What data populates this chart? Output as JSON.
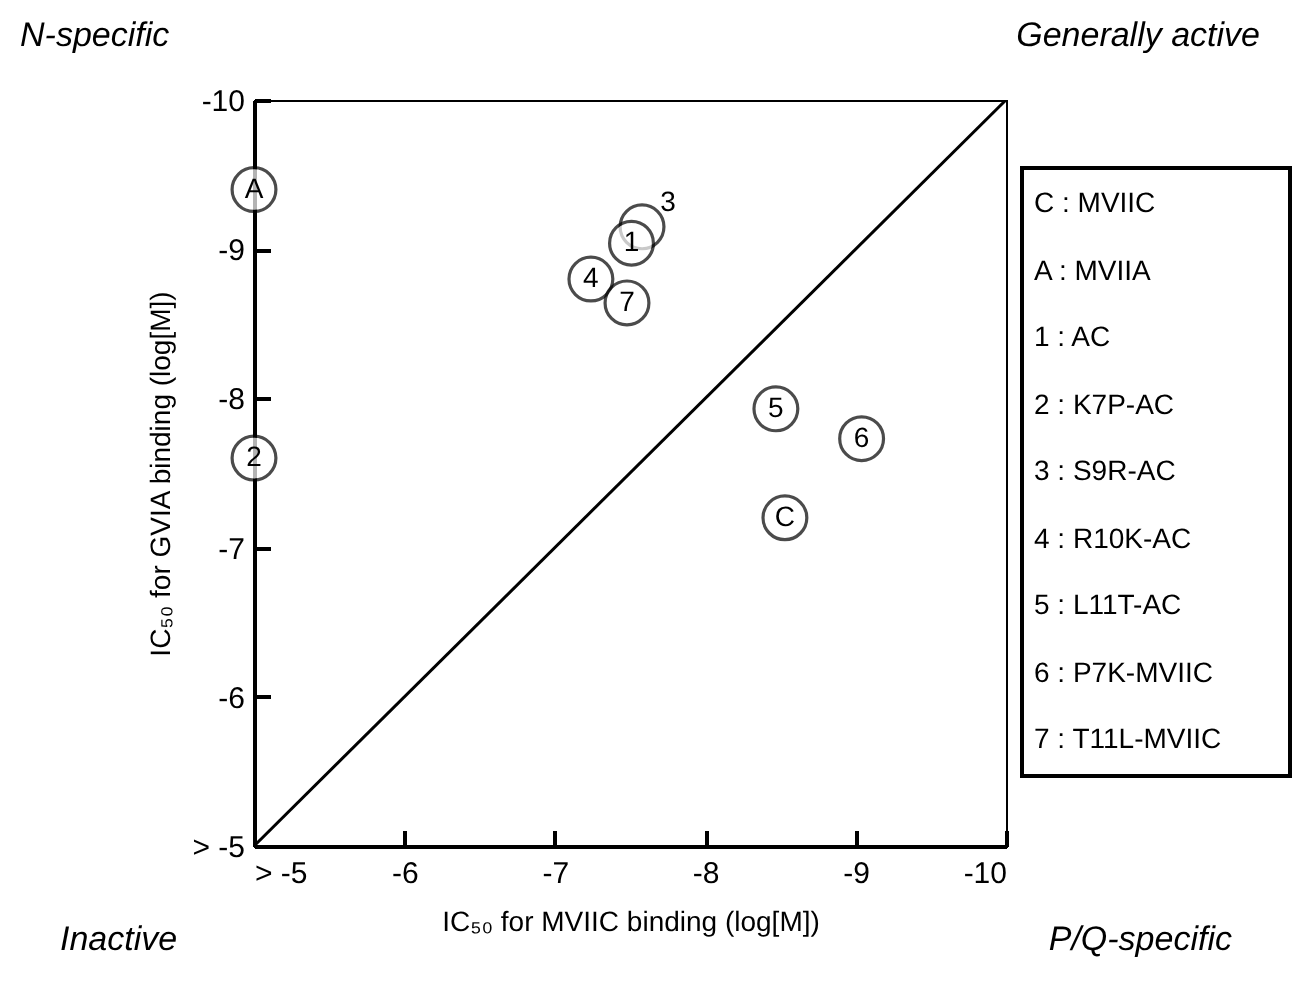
{
  "chart_data": {
    "type": "scatter",
    "xlabel": "IC₅₀ for MVIIC binding (log[M])",
    "ylabel": "IC₅₀ for GVIA binding (log[M])",
    "xlim": [
      -5,
      -10
    ],
    "ylim": [
      -5,
      -10
    ],
    "xticks": [
      {
        "value": -5,
        "label": "> -5"
      },
      -6,
      -7,
      -8,
      -9,
      -10
    ],
    "yticks": [
      {
        "value": -5,
        "label": "> -5"
      },
      -6,
      -7,
      -8,
      -9,
      -10
    ],
    "grid": false,
    "series": [
      {
        "type": "line",
        "color": "#000000",
        "x": [
          -5,
          -10
        ],
        "values": [
          -5,
          -10
        ]
      },
      {
        "type": "scatter",
        "color": "#000000",
        "marker": "circle",
        "x": [
          -5,
          -5,
          -7.58,
          -7.51,
          -7.24,
          -7.48,
          -8.47,
          -9.04,
          -8.53
        ],
        "values": [
          -9.4,
          -7.6,
          -9.15,
          -9.04,
          -8.8,
          -8.64,
          -7.93,
          -7.73,
          -7.2
        ]
      }
    ],
    "annotations": [
      "N-specific",
      "Generally active",
      "Inactive",
      "P/Q-specific",
      "C : MVIIC",
      "A : MVIIA",
      "1 : AC",
      "2 : K7P-AC",
      "3 : S9R-AC",
      "4 : R10K-AC",
      "5 : L11T-AC",
      "6 : P7K-MVIIC",
      "7 : T11L-MVIIC",
      {
        "text": "A",
        "x": -5,
        "y": -9.4
      },
      {
        "text": "2",
        "x": -5,
        "y": -7.6
      },
      {
        "text": "3",
        "x": -7.58,
        "y": -9.15
      },
      {
        "text": "1",
        "x": -7.51,
        "y": -9.04
      },
      {
        "text": "4",
        "x": -7.24,
        "y": -8.8
      },
      {
        "text": "7",
        "x": -7.48,
        "y": -8.64
      },
      {
        "text": "5",
        "x": -8.47,
        "y": -7.93
      },
      {
        "text": "6",
        "x": -9.04,
        "y": -7.73
      },
      {
        "text": "C",
        "x": -8.53,
        "y": -7.2
      }
    ]
  }
}
